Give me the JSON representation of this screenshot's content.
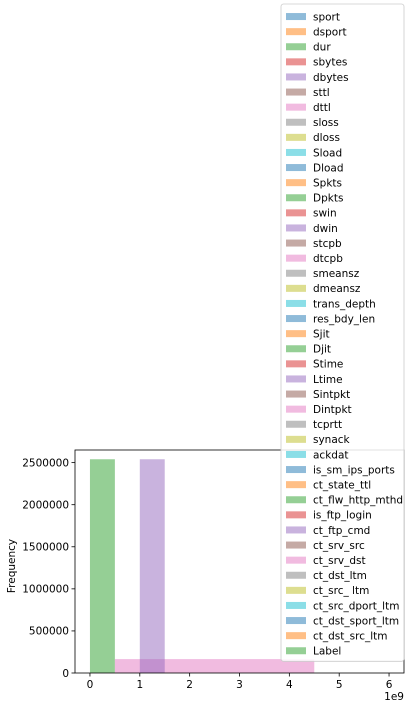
{
  "chart_data": {
    "type": "histogram",
    "title": "",
    "xlabel": "",
    "ylabel": "Frequency",
    "x_offset_label": "1e9",
    "xlim": [
      -0.3,
      6.3
    ],
    "ylim": [
      0,
      2650000
    ],
    "x_ticks": [
      0,
      1,
      2,
      3,
      4,
      5,
      6
    ],
    "y_ticks": [
      0,
      500000,
      1000000,
      1500000,
      2000000,
      2500000
    ],
    "grid": false,
    "legend_position": "upper-right",
    "series": [
      {
        "name": "sport",
        "color": "#1f77b4",
        "bars": []
      },
      {
        "name": "dsport",
        "color": "#ff7f0e",
        "bars": []
      },
      {
        "name": "dur",
        "color": "#2ca02c",
        "bars": [
          {
            "x0": 0.0,
            "x1": 0.5,
            "count": 2540000
          }
        ]
      },
      {
        "name": "sbytes",
        "color": "#d62728",
        "bars": []
      },
      {
        "name": "dbytes",
        "color": "#9467bd",
        "bars": []
      },
      {
        "name": "sttl",
        "color": "#8c564b",
        "bars": []
      },
      {
        "name": "dttl",
        "color": "#e377c2",
        "bars": []
      },
      {
        "name": "sloss",
        "color": "#7f7f7f",
        "bars": []
      },
      {
        "name": "dloss",
        "color": "#bcbd22",
        "bars": []
      },
      {
        "name": "Sload",
        "color": "#17becf",
        "bars": []
      },
      {
        "name": "Dload",
        "color": "#1f77b4",
        "bars": []
      },
      {
        "name": "Spkts",
        "color": "#ff7f0e",
        "bars": []
      },
      {
        "name": "Dpkts",
        "color": "#2ca02c",
        "bars": []
      },
      {
        "name": "swin",
        "color": "#d62728",
        "bars": []
      },
      {
        "name": "dwin",
        "color": "#9467bd",
        "bars": []
      },
      {
        "name": "stcpb",
        "color": "#8c564b",
        "bars": []
      },
      {
        "name": "dtcpb",
        "color": "#e377c2",
        "bars": [
          {
            "x0": 0.5,
            "x1": 4.5,
            "count": 165000
          }
        ]
      },
      {
        "name": "smeansz",
        "color": "#7f7f7f",
        "bars": []
      },
      {
        "name": "dmeansz",
        "color": "#bcbd22",
        "bars": []
      },
      {
        "name": "trans_depth",
        "color": "#17becf",
        "bars": []
      },
      {
        "name": "res_bdy_len",
        "color": "#1f77b4",
        "bars": []
      },
      {
        "name": "Sjit",
        "color": "#ff7f0e",
        "bars": []
      },
      {
        "name": "Djit",
        "color": "#2ca02c",
        "bars": []
      },
      {
        "name": "Stime",
        "color": "#d62728",
        "bars": []
      },
      {
        "name": "Ltime",
        "color": "#9467bd",
        "bars": [
          {
            "x0": 1.0,
            "x1": 1.5,
            "count": 2540000
          }
        ]
      },
      {
        "name": "Sintpkt",
        "color": "#8c564b",
        "bars": []
      },
      {
        "name": "Dintpkt",
        "color": "#e377c2",
        "bars": []
      },
      {
        "name": "tcprtt",
        "color": "#7f7f7f",
        "bars": []
      },
      {
        "name": "synack",
        "color": "#bcbd22",
        "bars": []
      },
      {
        "name": "ackdat",
        "color": "#17becf",
        "bars": []
      },
      {
        "name": "is_sm_ips_ports",
        "color": "#1f77b4",
        "bars": []
      },
      {
        "name": "ct_state_ttl",
        "color": "#ff7f0e",
        "bars": []
      },
      {
        "name": "ct_flw_http_mthd",
        "color": "#2ca02c",
        "bars": []
      },
      {
        "name": "is_ftp_login",
        "color": "#d62728",
        "bars": []
      },
      {
        "name": "ct_ftp_cmd",
        "color": "#9467bd",
        "bars": []
      },
      {
        "name": "ct_srv_src",
        "color": "#8c564b",
        "bars": []
      },
      {
        "name": "ct_srv_dst",
        "color": "#e377c2",
        "bars": []
      },
      {
        "name": "ct_dst_ltm",
        "color": "#7f7f7f",
        "bars": []
      },
      {
        "name": "ct_src_ ltm",
        "color": "#bcbd22",
        "bars": []
      },
      {
        "name": "ct_src_dport_ltm",
        "color": "#17becf",
        "bars": []
      },
      {
        "name": "ct_dst_sport_ltm",
        "color": "#1f77b4",
        "bars": []
      },
      {
        "name": "ct_dst_src_ltm",
        "color": "#ff7f0e",
        "bars": []
      },
      {
        "name": "Label",
        "color": "#2ca02c",
        "bars": []
      }
    ]
  }
}
